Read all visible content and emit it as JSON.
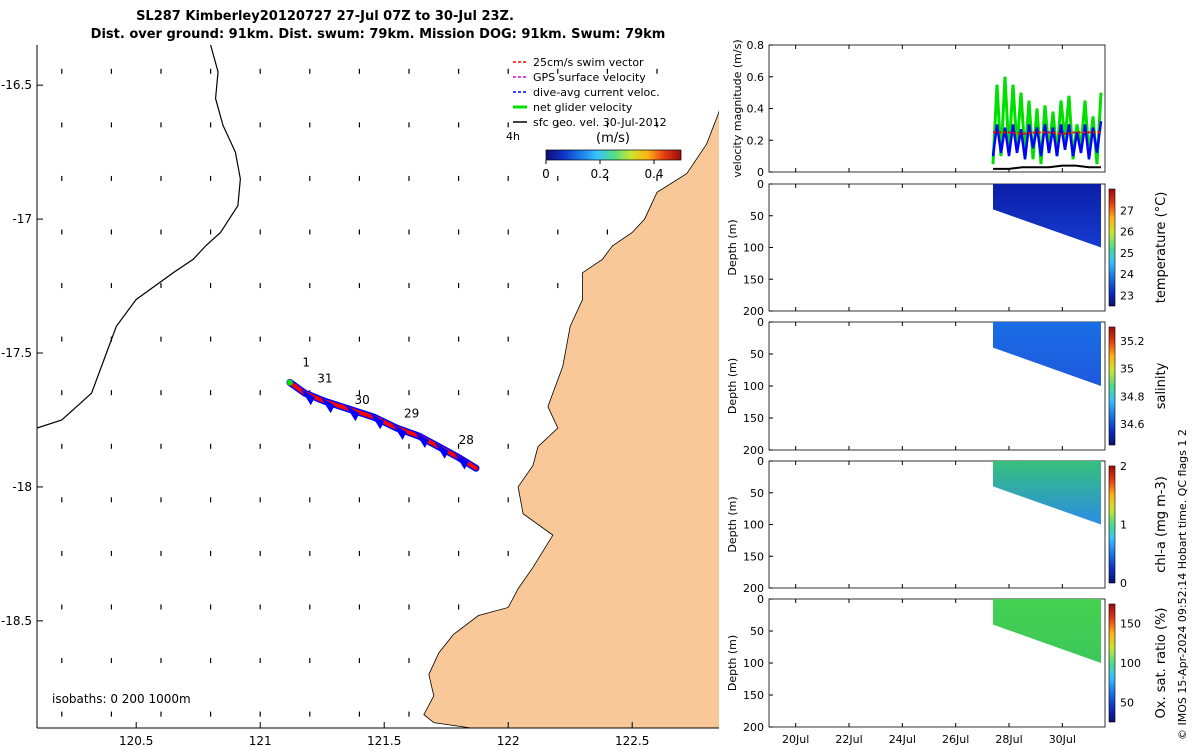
{
  "title": {
    "line1": "SL287 Kimberley20120727 27-Jul 07Z to 30-Jul 23Z.",
    "line2": "Dist. over ground: 91km. Dist. swum: 79km. Mission DOG: 91km. Swum: 79km"
  },
  "credit": "© IMOS 15-Apr-2024 09:52:14 Hobart time. QC flags 1  2",
  "colors": {
    "land": "#F8C898",
    "track_red": "#FF0000",
    "track_blue": "#0000FF",
    "net_green": "#00E000",
    "gps_magenta": "#E000E0",
    "geo_black": "#000000"
  },
  "chart_data": [
    {
      "type": "map",
      "name": "glider track map",
      "xlim": [
        120.1,
        122.85
      ],
      "ylim": [
        -18.9,
        -16.35
      ],
      "x_ticks": [
        120.5,
        121,
        121.5,
        122,
        122.5
      ],
      "x_tick_labels": [
        "120.5",
        "121",
        "121.5",
        "122",
        "122.5"
      ],
      "y_ticks": [
        -16.5,
        -17,
        -17.5,
        -18,
        -18.5
      ],
      "y_tick_labels": [
        "-16.5",
        "-17",
        "-17.5",
        "-18",
        "-18.5"
      ],
      "legend": {
        "position": "top-right",
        "entries": [
          {
            "label": "25cm/s swim vector",
            "color": "#FF0000"
          },
          {
            "label": "GPS surface velocity",
            "color": "#E000E0"
          },
          {
            "label": "dive-avg current veloc.",
            "color": "#0000FF"
          },
          {
            "label": "net glider velocity",
            "color": "#00E000"
          },
          {
            "label": "sfc geo. vel. 30-Jul-2012",
            "color": "#000000"
          }
        ],
        "note": "4h"
      },
      "colorbar": {
        "label": "(m/s)",
        "ticks": [
          0,
          0.2,
          0.4
        ],
        "tick_labels": [
          "0",
          "0.2",
          "0.4"
        ],
        "range": [
          0,
          0.5
        ]
      },
      "isobaths_label": "isobaths: 0   200  1000m",
      "track_lon": [
        121.12,
        121.18,
        121.26,
        121.36,
        121.46,
        121.55,
        121.64,
        121.72,
        121.8,
        121.87
      ],
      "track_lat": [
        -17.61,
        -17.65,
        -17.68,
        -17.71,
        -17.74,
        -17.78,
        -17.81,
        -17.85,
        -17.89,
        -17.93
      ],
      "day_labels": [
        {
          "text": "1",
          "lon": 121.17,
          "lat": -17.55
        },
        {
          "text": "31",
          "lon": 121.23,
          "lat": -17.61
        },
        {
          "text": "30",
          "lon": 121.38,
          "lat": -17.69
        },
        {
          "text": "29",
          "lon": 121.58,
          "lat": -17.74
        },
        {
          "text": "28",
          "lon": 121.8,
          "lat": -17.84
        }
      ],
      "isobath_lon": [
        120.8,
        120.83,
        120.82,
        120.85,
        120.9,
        120.92,
        120.91,
        120.84,
        120.78,
        120.73,
        120.65,
        120.5,
        120.42,
        120.38,
        120.32,
        120.2,
        120.1
      ],
      "isobath_lat": [
        -16.35,
        -16.45,
        -16.55,
        -16.65,
        -16.75,
        -16.85,
        -16.95,
        -17.05,
        -17.1,
        -17.15,
        -17.2,
        -17.3,
        -17.4,
        -17.5,
        -17.65,
        -17.75,
        -17.78
      ],
      "coast_lon": [
        122.85,
        122.8,
        122.72,
        122.6,
        122.55,
        122.5,
        122.42,
        122.38,
        122.3,
        122.3,
        122.25,
        122.22,
        122.16,
        122.2,
        122.12,
        122.1,
        122.04,
        122.06,
        122.18,
        122.1,
        122.04,
        122.0,
        121.88,
        121.78,
        121.72,
        121.68,
        121.7,
        121.66,
        121.7,
        121.85
      ],
      "coast_lat": [
        -16.6,
        -16.72,
        -16.83,
        -16.9,
        -17.0,
        -17.05,
        -17.1,
        -17.15,
        -17.2,
        -17.3,
        -17.4,
        -17.55,
        -17.7,
        -17.78,
        -17.85,
        -17.92,
        -18.0,
        -18.1,
        -18.18,
        -18.3,
        -18.38,
        -18.45,
        -18.48,
        -18.55,
        -18.62,
        -18.7,
        -18.78,
        -18.85,
        -18.88,
        -18.9
      ],
      "vector_grid": "sfc geo. vel. vectors every 0.2 deg"
    },
    {
      "type": "line",
      "name": "velocity magnitude",
      "ylabel": "velocity magnitude (m/s)",
      "ylim": [
        0,
        0.8
      ],
      "y_ticks": [
        0,
        0.2,
        0.4,
        0.6,
        0.8
      ],
      "y_tick_labels": [
        "0",
        "0.2",
        "0.4",
        "0.6",
        "0.8"
      ],
      "xlim_days": [
        19,
        31.6
      ],
      "series": [
        {
          "name": "net glider velocity",
          "color": "#00E000",
          "x": [
            27.4,
            27.55,
            27.7,
            27.85,
            28.0,
            28.15,
            28.3,
            28.45,
            28.6,
            28.75,
            28.9,
            29.05,
            29.2,
            29.35,
            29.5,
            29.65,
            29.8,
            29.95,
            30.1,
            30.25,
            30.4,
            30.55,
            30.7,
            30.85,
            31.0,
            31.15,
            31.3,
            31.45
          ],
          "y": [
            0.05,
            0.55,
            0.1,
            0.6,
            0.12,
            0.55,
            0.15,
            0.5,
            0.1,
            0.45,
            0.08,
            0.4,
            0.05,
            0.42,
            0.12,
            0.38,
            0.1,
            0.45,
            0.2,
            0.48,
            0.08,
            0.3,
            0.15,
            0.45,
            0.1,
            0.35,
            0.05,
            0.5
          ]
        },
        {
          "name": "dive-avg current veloc.",
          "color": "#0000FF",
          "x": [
            27.4,
            27.55,
            27.7,
            27.85,
            28.0,
            28.15,
            28.3,
            28.45,
            28.6,
            28.75,
            28.9,
            29.05,
            29.2,
            29.35,
            29.5,
            29.65,
            29.8,
            29.95,
            30.1,
            30.25,
            30.4,
            30.55,
            30.7,
            30.85,
            31.0,
            31.15,
            31.3,
            31.45
          ],
          "y": [
            0.1,
            0.3,
            0.12,
            0.28,
            0.1,
            0.3,
            0.12,
            0.27,
            0.08,
            0.3,
            0.15,
            0.28,
            0.1,
            0.3,
            0.12,
            0.28,
            0.1,
            0.3,
            0.14,
            0.3,
            0.1,
            0.25,
            0.12,
            0.3,
            0.08,
            0.28,
            0.12,
            0.32
          ]
        },
        {
          "name": "swim speed",
          "color": "#FF0000",
          "x": [
            27.4,
            28.0,
            28.5,
            29.0,
            29.5,
            30.0,
            30.5,
            31.0,
            31.45
          ],
          "y": [
            0.25,
            0.25,
            0.24,
            0.25,
            0.25,
            0.24,
            0.25,
            0.25,
            0.25
          ]
        },
        {
          "name": "sfc geo. vel.",
          "color": "#000000",
          "x": [
            27.4,
            28.0,
            28.5,
            29.0,
            29.5,
            30.0,
            30.5,
            31.0,
            31.45
          ],
          "y": [
            0.02,
            0.02,
            0.03,
            0.03,
            0.03,
            0.04,
            0.04,
            0.03,
            0.03
          ]
        }
      ]
    },
    {
      "type": "heatmap",
      "name": "temperature section",
      "ylabel": "Depth (m)",
      "ylim": [
        200,
        0
      ],
      "y_ticks": [
        0,
        50,
        100,
        150,
        200
      ],
      "cbar_label": "temperature (°C)",
      "cbar_range": [
        22.5,
        28
      ],
      "cbar_ticks": [
        23,
        24,
        25,
        26,
        27
      ],
      "data_x": [
        27.4,
        31.45
      ],
      "bottom_depth": [
        40,
        100
      ],
      "colorscale": [
        "#0b0f6e",
        "#1030c8",
        "#1a78e6",
        "#38c0ff",
        "#4fdc8a",
        "#c8e632",
        "#ffb414",
        "#e83c12",
        "#9a0b0b"
      ],
      "top_color": "#0b1ea8",
      "bottom_color": "#163cd0"
    },
    {
      "type": "heatmap",
      "name": "salinity section",
      "ylabel": "Depth (m)",
      "ylim": [
        200,
        0
      ],
      "y_ticks": [
        0,
        50,
        100,
        150,
        200
      ],
      "cbar_label": "salinity",
      "cbar_range": [
        34.45,
        35.3
      ],
      "cbar_ticks": [
        34.6,
        34.8,
        35,
        35.2
      ],
      "data_x": [
        27.4,
        31.45
      ],
      "bottom_depth": [
        40,
        100
      ],
      "colorscale": [
        "#0b0f6e",
        "#1030c8",
        "#1a78e6",
        "#38c0ff",
        "#4fdc8a",
        "#c8e632",
        "#ffb414",
        "#e83c12",
        "#9a0b0b"
      ],
      "top_color": "#1a6ee6",
      "bottom_color": "#1e58dc"
    },
    {
      "type": "heatmap",
      "name": "chlorophyll section",
      "ylabel": "Depth (m)",
      "ylim": [
        200,
        0
      ],
      "y_ticks": [
        0,
        50,
        100,
        150,
        200
      ],
      "cbar_label": "chl-a (mg m-3)",
      "cbar_range": [
        0,
        2
      ],
      "cbar_ticks": [
        0,
        1,
        2
      ],
      "data_x": [
        27.4,
        31.45
      ],
      "bottom_depth": [
        40,
        100
      ],
      "colorscale": [
        "#0b0f6e",
        "#1030c8",
        "#1a78e6",
        "#38c0ff",
        "#4fdc8a",
        "#c8e632",
        "#ffb414",
        "#e83c12",
        "#9a0b0b"
      ],
      "top_color": "#36c07a",
      "bottom_color": "#2c8ce6"
    },
    {
      "type": "heatmap",
      "name": "oxygen saturation section",
      "ylabel": "Depth (m)",
      "ylim": [
        200,
        0
      ],
      "y_ticks": [
        0,
        50,
        100,
        150,
        200
      ],
      "cbar_label": "Ox. sat. ratio (%)",
      "cbar_range": [
        25,
        175
      ],
      "cbar_ticks": [
        50,
        100,
        150
      ],
      "data_x": [
        27.4,
        31.45
      ],
      "bottom_depth": [
        40,
        100
      ],
      "colorscale": [
        "#0b0f6e",
        "#1030c8",
        "#1a78e6",
        "#38c0ff",
        "#4fdc8a",
        "#c8e632",
        "#ffb414",
        "#e83c12",
        "#9a0b0b"
      ],
      "top_color": "#44d050",
      "bottom_color": "#3cc85a"
    }
  ],
  "time_axis": {
    "xlim_days": [
      19,
      31.6
    ],
    "ticks": [
      20,
      22,
      24,
      26,
      28,
      30
    ],
    "tick_labels": [
      "20Jul",
      "22Jul",
      "24Jul",
      "26Jul",
      "28Jul",
      "30Jul"
    ]
  }
}
